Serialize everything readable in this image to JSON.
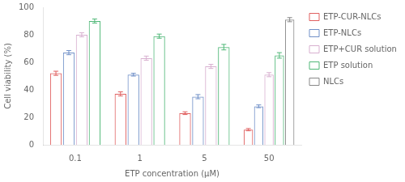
{
  "chart_data": {
    "type": "bar",
    "categories": [
      "0.1",
      "1",
      "5",
      "50"
    ],
    "series": [
      {
        "name": "ETP-CUR-NLCs",
        "color": "#e06060",
        "values": [
          52,
          37,
          23,
          11
        ],
        "errors": [
          1.5,
          1.5,
          1.0,
          0.8
        ]
      },
      {
        "name": "ETP-NLCs",
        "color": "#7090c8",
        "values": [
          67,
          51,
          35,
          28
        ],
        "errors": [
          1.5,
          1.0,
          1.5,
          1.0
        ]
      },
      {
        "name": "ETP+CUR solution",
        "color": "#d8b0d0",
        "values": [
          80,
          63,
          57,
          51
        ],
        "errors": [
          1.5,
          1.5,
          1.5,
          1.5
        ]
      },
      {
        "name": "ETP solution",
        "color": "#50b878",
        "values": [
          90,
          79,
          71,
          65
        ],
        "errors": [
          1.5,
          1.5,
          2.0,
          2.0
        ]
      },
      {
        "name": "NLCs",
        "color": "#888888",
        "values": [
          null,
          null,
          null,
          91
        ],
        "errors": [
          null,
          null,
          null,
          1.5
        ]
      }
    ],
    "xlabel": "ETP concentration (μM)",
    "ylabel": "Cell viability (%)",
    "ylim": [
      0,
      100
    ],
    "yticks": [
      0,
      20,
      40,
      60,
      80,
      100
    ],
    "grid": false,
    "legend": "right"
  }
}
